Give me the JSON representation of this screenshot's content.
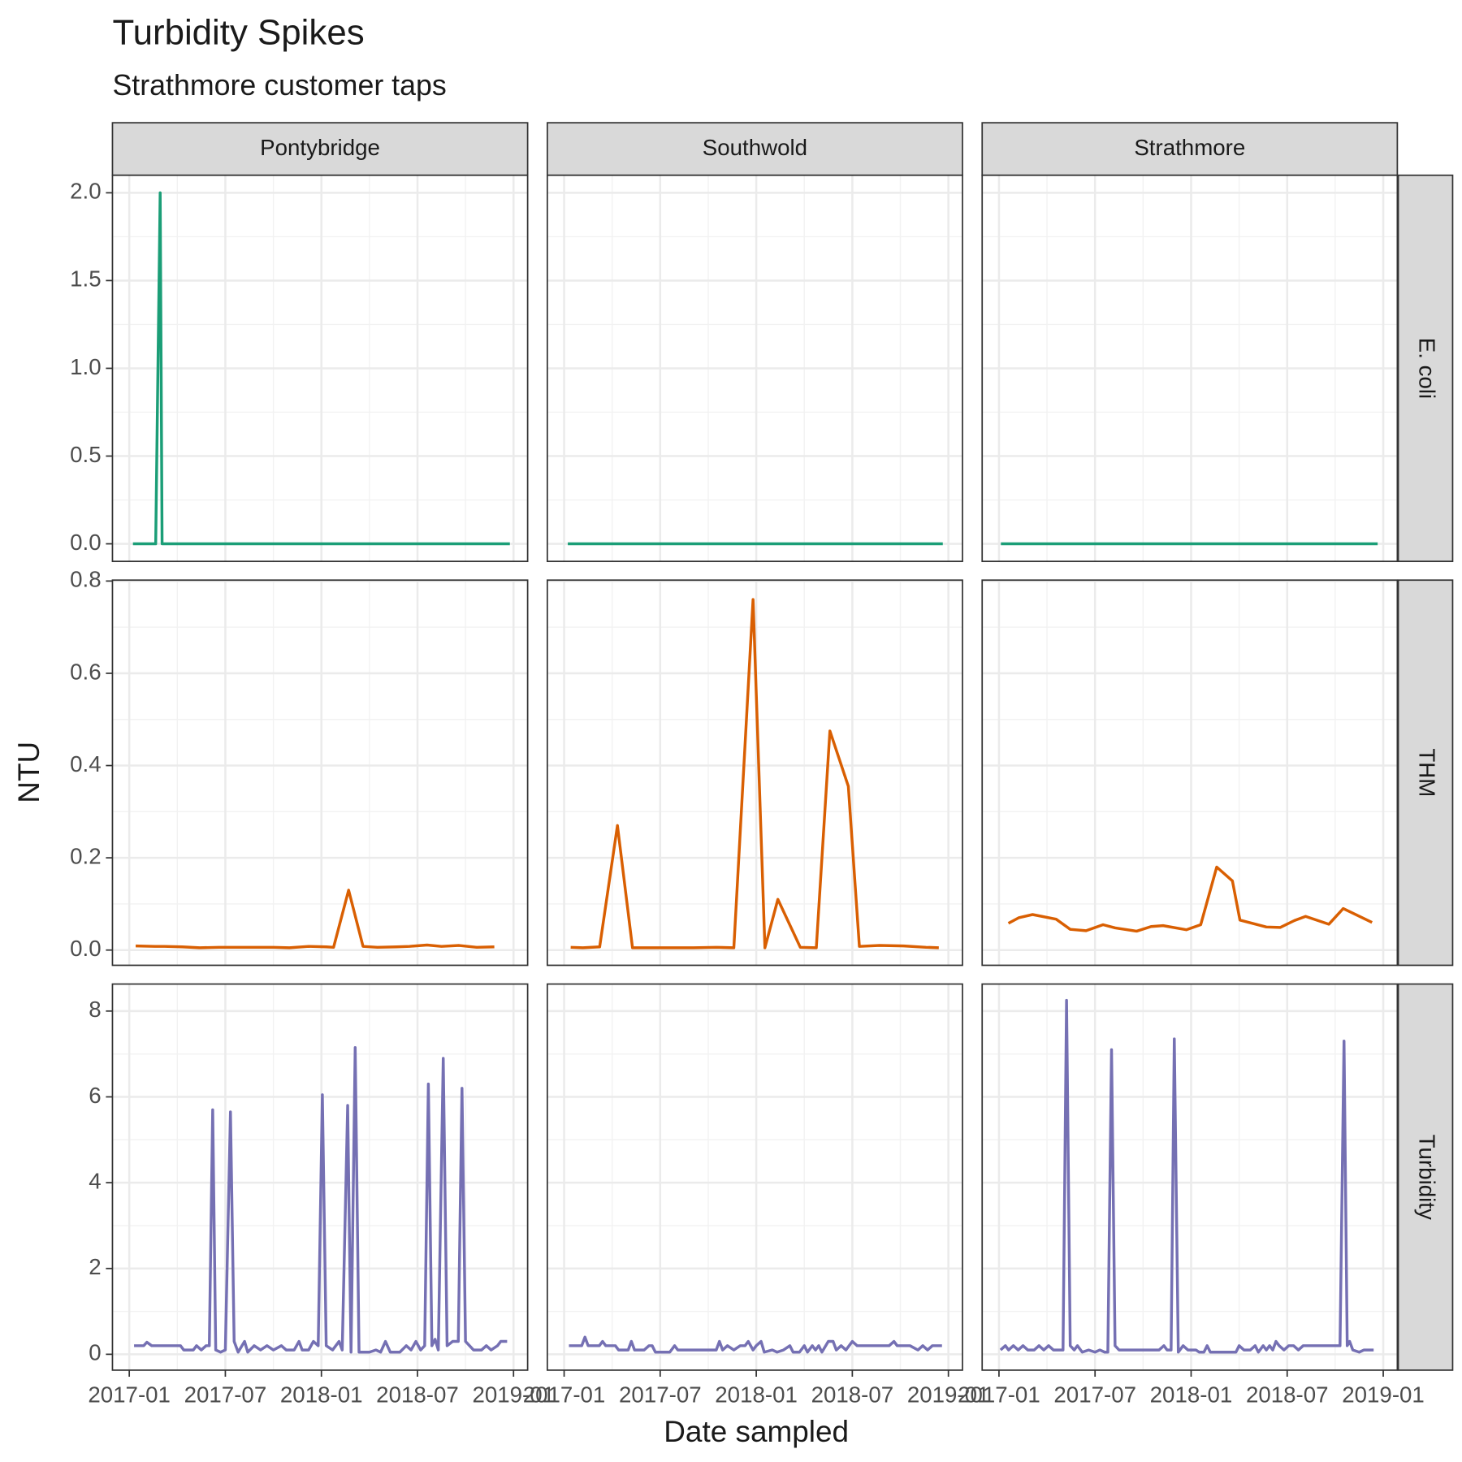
{
  "chart_data": {
    "type": "line",
    "title": "Turbidity Spikes",
    "subtitle": "Strathmore customer taps",
    "x_label": "Date sampled",
    "y_label": "NTU",
    "columns": [
      "Pontybridge",
      "Southwold",
      "Strathmore"
    ],
    "xlim": [
      -1.05,
      24.88
    ],
    "xticks": [
      {
        "value": 0,
        "label": "2017-01"
      },
      {
        "value": 6,
        "label": "2017-07"
      },
      {
        "value": 12,
        "label": "2018-01"
      },
      {
        "value": 18,
        "label": "2018-07"
      },
      {
        "value": 24,
        "label": "2019-01"
      }
    ],
    "grid": true,
    "rows": [
      {
        "label": "E. coli",
        "color": "#1b9e77",
        "ylim": [
          -0.1,
          2.1
        ],
        "yticks": [
          {
            "value": 0,
            "label": "0.0"
          },
          0.5,
          {
            "value": 1,
            "label": "1.0"
          },
          1.5,
          {
            "value": 2,
            "label": "2.0"
          }
        ],
        "series": [
          {
            "x": [
              0.23,
              1.65,
              1.93,
              2.05,
              23.77
            ],
            "values": [
              0,
              0,
              2,
              0,
              0
            ]
          },
          {
            "x": [
              0.23,
              23.65
            ],
            "values": [
              0,
              0
            ]
          },
          {
            "x": [
              0.12,
              23.65
            ],
            "values": [
              0,
              0
            ]
          }
        ]
      },
      {
        "label": "THM",
        "color": "#d95f02",
        "ylim": [
          -0.033,
          0.802
        ],
        "yticks": [
          {
            "value": 0,
            "label": "0.0"
          },
          0.2,
          0.4,
          0.6,
          0.8
        ],
        "series": [
          {
            "x": [
              0.4,
              1.6,
              2.2,
              3.3,
              4.4,
              5.6,
              6.7,
              8.0,
              9.0,
              10.0,
              11.2,
              12.3,
              12.76,
              13.7,
              14.6,
              15.5,
              16.7,
              17.5,
              18.6,
              19.5,
              20.6,
              21.7,
              22.8
            ],
            "values": [
              0.009,
              0.008,
              0.008,
              0.007,
              0.005,
              0.006,
              0.006,
              0.006,
              0.006,
              0.005,
              0.008,
              0.007,
              0.006,
              0.13,
              0.008,
              0.006,
              0.007,
              0.008,
              0.011,
              0.008,
              0.01,
              0.006,
              0.007
            ]
          },
          {
            "x": [
              0.41,
              1.17,
              2.22,
              3.33,
              4.27,
              5.7,
              8.08,
              9.5,
              10.6,
              11.8,
              12.54,
              13.35,
              14.75,
              15.75,
              16.6,
              17.75,
              18.44,
              19.7,
              21.2,
              22.6,
              23.4
            ],
            "values": [
              0.006,
              0.005,
              0.007,
              0.27,
              0.005,
              0.005,
              0.005,
              0.006,
              0.005,
              0.76,
              0.005,
              0.11,
              0.006,
              0.005,
              0.475,
              0.355,
              0.008,
              0.01,
              0.009,
              0.006,
              0.005
            ]
          },
          {
            "x": [
              0.59,
              1.23,
              2.1,
              3.57,
              4.45,
              5.44,
              6.5,
              7.26,
              8.6,
              9.5,
              10.25,
              11.7,
              12.6,
              13.6,
              14.58,
              15.05,
              16.7,
              17.56,
              18.45,
              19.15,
              20.6,
              21.5,
              23.3
            ],
            "values": [
              0.058,
              0.07,
              0.077,
              0.067,
              0.045,
              0.042,
              0.055,
              0.048,
              0.041,
              0.051,
              0.053,
              0.044,
              0.055,
              0.18,
              0.15,
              0.065,
              0.05,
              0.049,
              0.064,
              0.073,
              0.056,
              0.09,
              0.06
            ]
          }
        ]
      },
      {
        "label": "Turbidity",
        "color": "#7570b3",
        "ylim": [
          -0.37,
          8.63
        ],
        "yticks": [
          0,
          2,
          4,
          6,
          8
        ],
        "series": [
          {
            "x": [
              0.3,
              0.9,
              1.1,
              1.4,
              2.5,
              3.2,
              3.4,
              4.0,
              4.2,
              4.5,
              4.8,
              5.0,
              5.21,
              5.4,
              5.7,
              6.0,
              6.32,
              6.55,
              6.8,
              7.2,
              7.4,
              7.8,
              8.2,
              8.6,
              9.0,
              9.5,
              9.8,
              10.3,
              10.6,
              10.8,
              11.2,
              11.5,
              11.8,
              12.06,
              12.3,
              12.7,
              13.1,
              13.3,
              13.64,
              13.85,
              14.11,
              14.35,
              15.0,
              15.4,
              15.7,
              16.0,
              16.3,
              16.9,
              17.3,
              17.6,
              17.9,
              18.2,
              18.45,
              18.68,
              18.9,
              19.1,
              19.3,
              19.61,
              19.85,
              20.2,
              20.55,
              20.78,
              21.0,
              21.5,
              22.0,
              22.3,
              22.6,
              23.0,
              23.2,
              23.6
            ],
            "values": [
              0.2,
              0.2,
              0.28,
              0.2,
              0.2,
              0.2,
              0.1,
              0.1,
              0.2,
              0.1,
              0.2,
              0.2,
              5.7,
              0.1,
              0.05,
              0.1,
              5.65,
              0.3,
              0.05,
              0.3,
              0.05,
              0.2,
              0.1,
              0.2,
              0.1,
              0.2,
              0.1,
              0.1,
              0.3,
              0.1,
              0.1,
              0.3,
              0.2,
              6.05,
              0.2,
              0.1,
              0.3,
              0.1,
              5.8,
              0.05,
              7.15,
              0.05,
              0.05,
              0.1,
              0.05,
              0.3,
              0.05,
              0.05,
              0.2,
              0.1,
              0.3,
              0.1,
              0.2,
              6.3,
              0.2,
              0.35,
              0.1,
              6.9,
              0.2,
              0.3,
              0.3,
              6.2,
              0.3,
              0.1,
              0.1,
              0.2,
              0.1,
              0.2,
              0.3,
              0.3
            ]
          },
          {
            "x": [
              0.3,
              1.1,
              1.3,
              1.5,
              2.2,
              2.4,
              2.6,
              3.2,
              3.4,
              4.0,
              4.2,
              4.4,
              5.0,
              5.3,
              5.5,
              5.7,
              6.2,
              6.6,
              6.9,
              7.1,
              8.0,
              9.0,
              9.5,
              9.7,
              9.9,
              10.2,
              10.6,
              11.0,
              11.3,
              11.5,
              11.8,
              12.0,
              12.3,
              12.5,
              13.0,
              13.3,
              13.7,
              14.1,
              14.3,
              14.7,
              15.0,
              15.2,
              15.5,
              15.7,
              15.9,
              16.1,
              16.5,
              16.8,
              17.0,
              17.3,
              17.6,
              18.0,
              18.3,
              19.5,
              20.3,
              20.6,
              20.8,
              21.6,
              22.1,
              22.4,
              22.7,
              23.0,
              23.6
            ],
            "values": [
              0.2,
              0.2,
              0.4,
              0.2,
              0.2,
              0.3,
              0.2,
              0.2,
              0.1,
              0.1,
              0.3,
              0.1,
              0.1,
              0.2,
              0.2,
              0.05,
              0.05,
              0.05,
              0.2,
              0.1,
              0.1,
              0.1,
              0.1,
              0.3,
              0.1,
              0.2,
              0.1,
              0.2,
              0.2,
              0.3,
              0.1,
              0.2,
              0.3,
              0.05,
              0.1,
              0.05,
              0.1,
              0.2,
              0.05,
              0.05,
              0.2,
              0.05,
              0.2,
              0.1,
              0.2,
              0.05,
              0.3,
              0.3,
              0.1,
              0.2,
              0.1,
              0.3,
              0.2,
              0.2,
              0.2,
              0.3,
              0.2,
              0.2,
              0.1,
              0.2,
              0.1,
              0.2,
              0.2
            ]
          },
          {
            "x": [
              0.1,
              0.4,
              0.6,
              0.9,
              1.2,
              1.5,
              1.8,
              2.2,
              2.5,
              2.8,
              3.1,
              3.4,
              4.0,
              4.22,
              4.45,
              4.7,
              4.9,
              5.2,
              5.6,
              6.0,
              6.3,
              6.6,
              6.8,
              7.03,
              7.25,
              7.5,
              8.0,
              9.0,
              10.0,
              10.3,
              10.5,
              10.75,
              10.95,
              11.2,
              11.5,
              11.8,
              12.3,
              12.5,
              12.8,
              13.0,
              13.2,
              14.0,
              14.8,
              15.0,
              15.3,
              15.7,
              16.0,
              16.2,
              16.5,
              16.7,
              16.9,
              17.1,
              17.3,
              17.5,
              17.8,
              18.1,
              18.4,
              18.7,
              19.0,
              19.5,
              21.3,
              21.55,
              21.75,
              21.9,
              22.1,
              22.5,
              22.8,
              23.4
            ],
            "values": [
              0.1,
              0.2,
              0.1,
              0.2,
              0.1,
              0.2,
              0.1,
              0.1,
              0.2,
              0.1,
              0.2,
              0.1,
              0.1,
              8.25,
              0.2,
              0.1,
              0.2,
              0.05,
              0.1,
              0.05,
              0.1,
              0.05,
              0.05,
              7.1,
              0.2,
              0.1,
              0.1,
              0.1,
              0.1,
              0.2,
              0.1,
              0.1,
              7.35,
              0.05,
              0.2,
              0.1,
              0.1,
              0.05,
              0.05,
              0.2,
              0.05,
              0.05,
              0.05,
              0.2,
              0.1,
              0.1,
              0.2,
              0.05,
              0.2,
              0.1,
              0.2,
              0.1,
              0.3,
              0.2,
              0.1,
              0.2,
              0.2,
              0.1,
              0.2,
              0.2,
              0.2,
              7.3,
              0.2,
              0.3,
              0.1,
              0.05,
              0.1,
              0.1
            ]
          }
        ]
      }
    ]
  }
}
